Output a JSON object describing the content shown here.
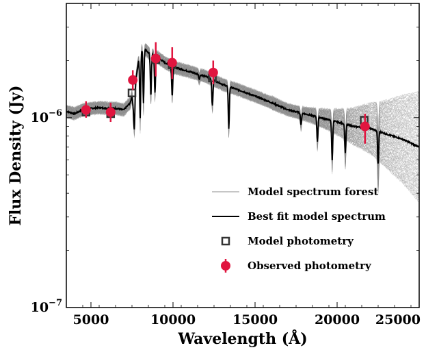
{
  "chart_data": {
    "type": "line",
    "xlabel": "Wavelength (Å)",
    "ylabel": "Flux Density (Jy)",
    "xlim": [
      3500,
      25000
    ],
    "ylim": [
      1e-07,
      4e-06
    ],
    "yscale": "log",
    "x_ticks": [
      5000,
      10000,
      15000,
      20000,
      25000
    ],
    "x_tick_labels": [
      "5000",
      "10000",
      "15000",
      "20000",
      "25000"
    ],
    "y_ticks": [
      1e-07,
      1e-06
    ],
    "y_tick_labels": [
      {
        "base": "10",
        "exp": "−7"
      },
      {
        "base": "10",
        "exp": "−6"
      }
    ],
    "grid": false,
    "legend_position": "lower-right",
    "legend": [
      {
        "label": "Model spectrum forest",
        "kind": "thin-line"
      },
      {
        "label": "Best fit model spectrum",
        "kind": "line"
      },
      {
        "label": "Model photometry",
        "kind": "open-square"
      },
      {
        "label": "Observed photometry",
        "kind": "errorbar-point"
      }
    ],
    "best_fit_spectrum": {
      "x": [
        3500,
        4000,
        4500,
        5000,
        5500,
        6000,
        6500,
        7000,
        7400,
        7500,
        7600,
        7700,
        7900,
        8100,
        8300,
        8500,
        9000,
        9500,
        10000,
        11000,
        12000,
        13000,
        13500,
        14000,
        15000,
        16000,
        17000,
        18000,
        19000,
        20000,
        21000,
        22000,
        23000,
        24000,
        25000
      ],
      "y": [
        1.08e-06,
        1.05e-06,
        1.1e-06,
        1.12e-06,
        1.13e-06,
        1.12e-06,
        1.12e-06,
        1.1e-06,
        1.2e-06,
        1.3e-06,
        1.1e-06,
        1.5e-06,
        2e-06,
        2.3e-06,
        2.3e-06,
        2.2e-06,
        2.1e-06,
        1.95e-06,
        1.85e-06,
        1.75e-06,
        1.65e-06,
        1.5e-06,
        1.45e-06,
        1.4e-06,
        1.3e-06,
        1.2e-06,
        1.1e-06,
        1.05e-06,
        1e-06,
        9.5e-07,
        9e-07,
        8.8e-07,
        8.2e-07,
        7.7e-07,
        7e-07
      ]
    },
    "absorption_dips": [
      {
        "x": 7650,
        "y": 8.8e-07
      },
      {
        "x": 8000,
        "y": 1e-06
      },
      {
        "x": 8200,
        "y": 1.2e-06
      },
      {
        "x": 8650,
        "y": 1.3e-06
      },
      {
        "x": 8900,
        "y": 1.35e-06
      },
      {
        "x": 9950,
        "y": 1.3e-06
      },
      {
        "x": 11600,
        "y": 1.6e-06
      },
      {
        "x": 12400,
        "y": 1.15e-06
      },
      {
        "x": 13400,
        "y": 8.8e-07
      },
      {
        "x": 17800,
        "y": 9.2e-07
      },
      {
        "x": 18800,
        "y": 7.5e-07
      },
      {
        "x": 19700,
        "y": 6e-07
      },
      {
        "x": 20500,
        "y": 6.5e-07
      },
      {
        "x": 22500,
        "y": 5.7e-07
      }
    ],
    "model_photometry": {
      "x": [
        4700,
        6200,
        7500,
        8950,
        9950,
        12400,
        21650
      ],
      "y": [
        1.07e-06,
        1.05e-06,
        1.35e-06,
        2.02e-06,
        1.9e-06,
        1.62e-06,
        9.7e-07
      ]
    },
    "observed_photometry": {
      "x": [
        4700,
        6200,
        7550,
        8950,
        9950,
        12450,
        21700
      ],
      "y": [
        1.1e-06,
        1.07e-06,
        1.58e-06,
        2.05e-06,
        1.95e-06,
        1.73e-06,
        9e-07
      ],
      "y_lower": [
        1e-06,
        9.5e-07,
        1.4e-06,
        1.65e-06,
        1.6e-06,
        1.5e-06,
        7.3e-07
      ],
      "y_upper": [
        1.22e-06,
        1.2e-06,
        1.78e-06,
        2.5e-06,
        2.35e-06,
        2e-06,
        1.05e-06
      ]
    },
    "colors": {
      "forest": "#8c8c8c",
      "best_fit": "#000000",
      "model_photometry": "#333333",
      "observed_photometry": "#e0153f"
    }
  }
}
